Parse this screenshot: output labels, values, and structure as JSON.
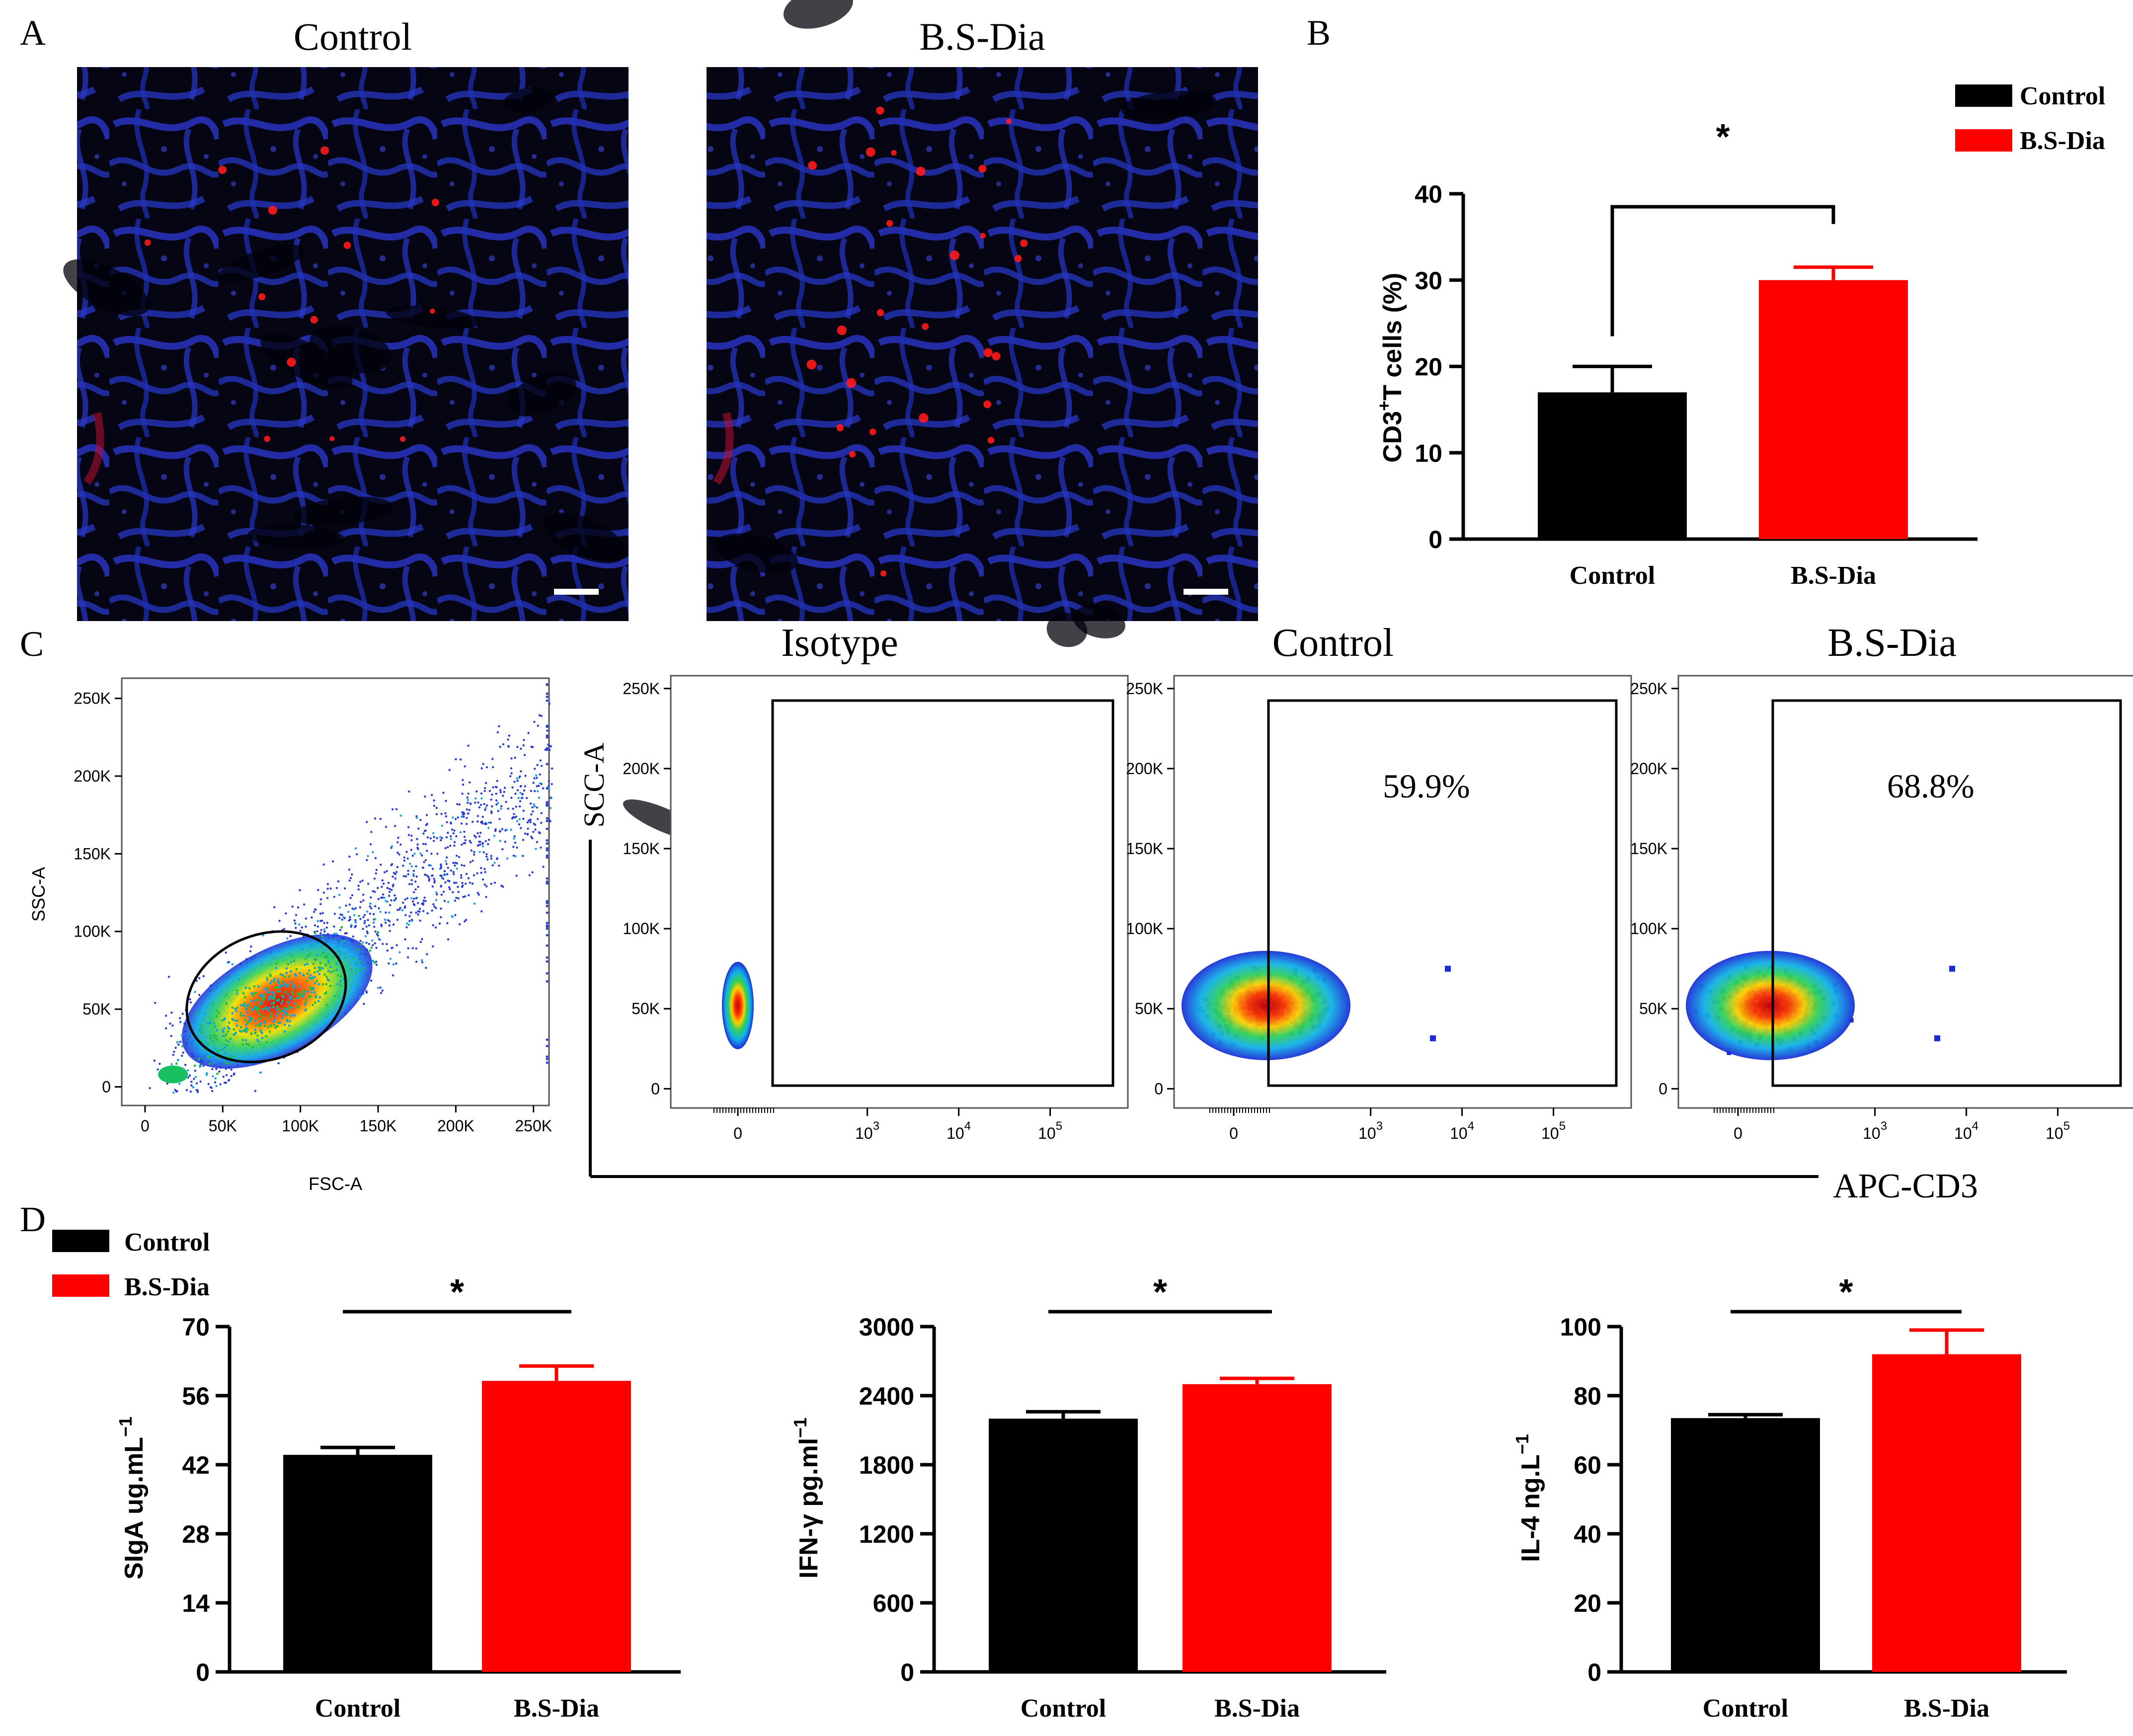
{
  "colors": {
    "control": "#000000",
    "treatment": "#ff0000",
    "micro_bg": "#050514",
    "micro_blue": "#2a36c9",
    "micro_red": "#ff1a1a"
  },
  "panelA": {
    "letter": "A",
    "images": [
      {
        "label": "Control",
        "red_dots": 13
      },
      {
        "label": "B.S-Dia",
        "red_dots": 26
      }
    ]
  },
  "panelB": {
    "letter": "B",
    "chart_data": {
      "type": "bar",
      "categories": [
        "Control",
        "B.S-Dia"
      ],
      "values": [
        17,
        30
      ],
      "errors": [
        3,
        1.5
      ],
      "ylabel_parts": [
        "CD3",
        "+",
        "T cells (%)"
      ],
      "ylim": [
        0,
        40
      ],
      "yticks": [
        "0",
        "10",
        "20",
        "30",
        "40"
      ],
      "legend": [
        "Control",
        "B.S-Dia"
      ],
      "significance": "*"
    }
  },
  "panelC": {
    "letter": "C",
    "gating": {
      "xlabel": "FSC-A",
      "ylabel": "SSC-A",
      "xticks": [
        "0",
        "50K",
        "100K",
        "150K",
        "200K",
        "250K"
      ],
      "yticks": [
        "0",
        "50K",
        "100K",
        "150K",
        "200K",
        "250K"
      ]
    },
    "shared_ylabel": "SCC-A",
    "shared_xlabel": "APC-CD3",
    "plots": [
      {
        "title": "Isotype",
        "percent": ""
      },
      {
        "title": "Control",
        "percent": "59.9%"
      },
      {
        "title": "B.S-Dia",
        "percent": "68.8%"
      }
    ],
    "yticks": [
      "0",
      "50K",
      "100K",
      "150K",
      "200K",
      "250K"
    ],
    "xticks": [
      {
        "base": "0",
        "exp": ""
      },
      {
        "base": "10",
        "exp": "3"
      },
      {
        "base": "10",
        "exp": "4"
      },
      {
        "base": "10",
        "exp": "5"
      }
    ]
  },
  "panelD": {
    "letter": "D",
    "legend": [
      "Control",
      "B.S-Dia"
    ],
    "chart_data": [
      {
        "type": "bar",
        "categories": [
          "Control",
          "B.S-Dia"
        ],
        "values": [
          44,
          59
        ],
        "errors": [
          1.5,
          3
        ],
        "ylabel": "SIgA ug.mL",
        "unit_exp": "−1",
        "ylim": [
          0,
          70
        ],
        "yticks": [
          "0",
          "14",
          "28",
          "42",
          "56",
          "70"
        ],
        "significance": "*"
      },
      {
        "type": "bar",
        "categories": [
          "Control",
          "B.S-Dia"
        ],
        "values": [
          2200,
          2500
        ],
        "errors": [
          60,
          50
        ],
        "ylabel": "IFN-γ pg.ml",
        "unit_exp": "−1",
        "ylim": [
          0,
          3000
        ],
        "yticks": [
          "0",
          "600",
          "1200",
          "1800",
          "2400",
          "3000"
        ],
        "significance": "*"
      },
      {
        "type": "bar",
        "categories": [
          "Control",
          "B.S-Dia"
        ],
        "values": [
          73.5,
          92
        ],
        "errors": [
          1,
          7
        ],
        "ylabel": "IL-4 ng.L",
        "unit_exp": "−1",
        "ylim": [
          0,
          100
        ],
        "yticks": [
          "0",
          "20",
          "40",
          "60",
          "80",
          "100"
        ],
        "significance": "*"
      }
    ]
  }
}
